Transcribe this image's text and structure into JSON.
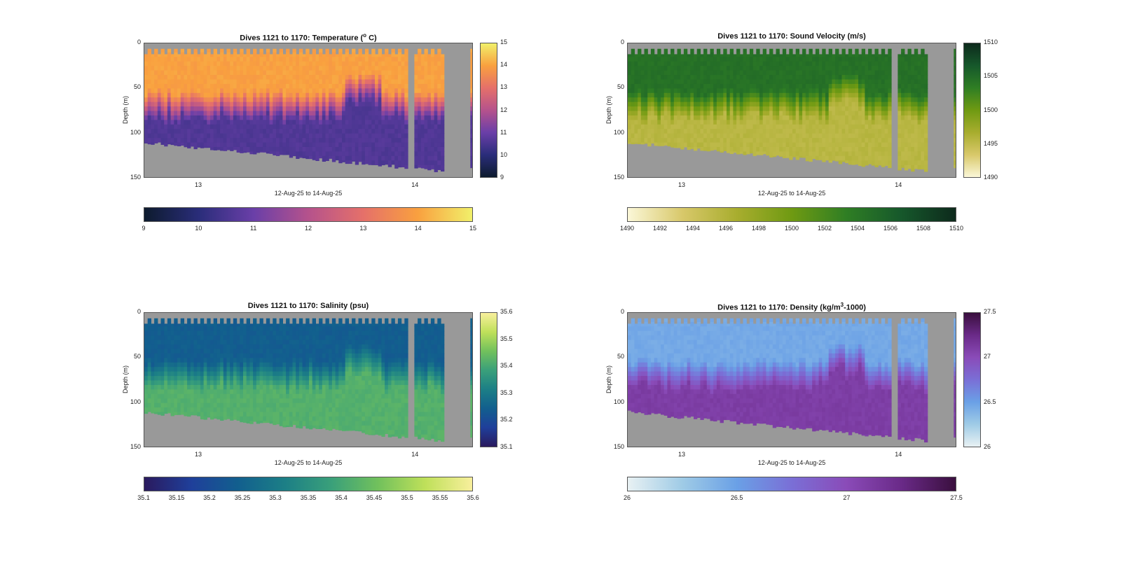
{
  "chart_data": [
    {
      "type": "heatmap",
      "title": "Dives 1121 to 1170: Temperature (° C)",
      "title_main": "Dives 1121 to 1170: Temperature (",
      "title_sup": "o",
      "title_end": " C)",
      "ylabel": "Depth (m)",
      "xlabel": "12-Aug-25 to 14-Aug-25",
      "yticks": [
        "0",
        "50",
        "100",
        "150"
      ],
      "xticks": [
        "13",
        "14"
      ],
      "ylim": [
        0,
        150
      ],
      "clim": [
        9,
        15
      ],
      "vcolorbar_ticks": [
        "9",
        "10",
        "11",
        "12",
        "13",
        "14",
        "15"
      ],
      "hcolorbar_ticks": [
        "9",
        "10",
        "11",
        "12",
        "13",
        "14",
        "15"
      ],
      "colormap": [
        "#0d1b2e",
        "#2a2d7a",
        "#6a3fa8",
        "#b5528c",
        "#e5706a",
        "#f9a03f",
        "#f1f06a"
      ],
      "surface_value": 14.0,
      "deep_value": 10.6,
      "thermocline_depth_m": [
        55,
        90
      ],
      "nodata_color": "#999999"
    },
    {
      "type": "heatmap",
      "title": "Dives 1121 to 1170: Sound Velocity (m/s)",
      "title_main": "Dives 1121 to 1170: Sound Velocity (m/s)",
      "ylabel": "Depth (m)",
      "xlabel": "12-Aug-25 to 14-Aug-25",
      "yticks": [
        "0",
        "50",
        "100",
        "150"
      ],
      "xticks": [
        "13",
        "14"
      ],
      "ylim": [
        0,
        150
      ],
      "clim": [
        1490,
        1510
      ],
      "vcolorbar_ticks": [
        "1490",
        "1495",
        "1500",
        "1505",
        "1510"
      ],
      "hcolorbar_ticks": [
        "1490",
        "1492",
        "1494",
        "1496",
        "1498",
        "1500",
        "1502",
        "1504",
        "1506",
        "1508",
        "1510"
      ],
      "colormap": [
        "#fbf7d8",
        "#d8c86a",
        "#a8ad2e",
        "#6f9a12",
        "#2f7e24",
        "#16582b",
        "#0d2a1c"
      ],
      "surface_value": 1504.5,
      "deep_value": 1495.5,
      "thermocline_depth_m": [
        55,
        90
      ],
      "nodata_color": "#999999"
    },
    {
      "type": "heatmap",
      "title": "Dives 1121 to 1170: Salinity (psu)",
      "title_main": "Dives 1121 to 1170: Salinity (psu)",
      "ylabel": "Depth (m)",
      "xlabel": "12-Aug-25 to 14-Aug-25",
      "yticks": [
        "0",
        "50",
        "100",
        "150"
      ],
      "xticks": [
        "13",
        "14"
      ],
      "ylim": [
        0,
        150
      ],
      "clim": [
        35.1,
        35.6
      ],
      "vcolorbar_ticks": [
        "35.1",
        "35.2",
        "35.3",
        "35.4",
        "35.5",
        "35.6"
      ],
      "hcolorbar_ticks": [
        "35.1",
        "35.15",
        "35.2",
        "35.25",
        "35.3",
        "35.35",
        "35.4",
        "35.45",
        "35.5",
        "35.55",
        "35.6"
      ],
      "colormap": [
        "#2a1a5e",
        "#1f3f9a",
        "#125f8e",
        "#1c7f86",
        "#3aa07a",
        "#72c15c",
        "#bfe05a",
        "#f8ef9c"
      ],
      "surface_value": 35.24,
      "deep_value": 35.42,
      "thermocline_depth_m": [
        55,
        90
      ],
      "nodata_color": "#999999"
    },
    {
      "type": "heatmap",
      "title": "Dives 1121 to 1170: Density (kg/m3-1000)",
      "title_main": "Dives 1121 to 1170: Density (kg/m",
      "title_sup": "3",
      "title_end": "-1000)",
      "ylabel": "Depth (m)",
      "xlabel": "12-Aug-25 to 14-Aug-25",
      "yticks": [
        "0",
        "50",
        "100",
        "150"
      ],
      "xticks": [
        "13",
        "14"
      ],
      "ylim": [
        0,
        150
      ],
      "clim": [
        26,
        27.5
      ],
      "vcolorbar_ticks": [
        "26",
        "26.5",
        "27",
        "27.5"
      ],
      "hcolorbar_ticks": [
        "26",
        "26.5",
        "27",
        "27.5"
      ],
      "colormap": [
        "#e8f1f3",
        "#9fcbe6",
        "#6aa0e6",
        "#7a6fd6",
        "#8a4bb8",
        "#6a2a88",
        "#3a0f3e"
      ],
      "surface_value": 26.45,
      "deep_value": 27.1,
      "thermocline_depth_m": [
        55,
        90
      ],
      "nodata_color": "#999999"
    }
  ]
}
